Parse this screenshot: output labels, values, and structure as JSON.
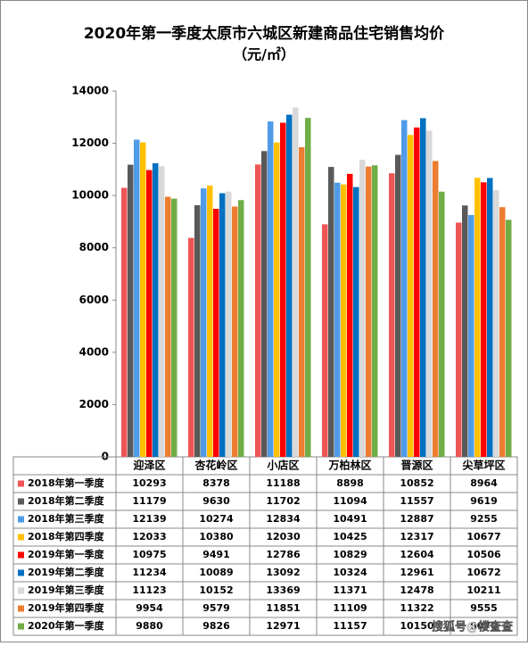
{
  "chart_data": {
    "type": "bar",
    "title": "2020年第一季度太原市六城区新建商品住宅销售均价",
    "subtitle": "（元/㎡）",
    "categories": [
      "迎泽区",
      "杏花岭区",
      "小店区",
      "万柏林区",
      "晋源区",
      "尖草坪区"
    ],
    "series": [
      {
        "name": "2018年第一季度",
        "color": "#ee5555",
        "values": [
          10293,
          8378,
          11188,
          8898,
          10852,
          8964
        ]
      },
      {
        "name": "2018年第二季度",
        "color": "#595959",
        "values": [
          11179,
          9630,
          11702,
          11094,
          11557,
          9619
        ]
      },
      {
        "name": "2018年第三季度",
        "color": "#4f9be8",
        "values": [
          12139,
          10274,
          12834,
          10491,
          12887,
          9255
        ]
      },
      {
        "name": "2018年第四季度",
        "color": "#ffc000",
        "values": [
          12033,
          10380,
          12030,
          10425,
          12317,
          10677
        ]
      },
      {
        "name": "2019年第一季度",
        "color": "#ff0000",
        "values": [
          10975,
          9491,
          12786,
          10829,
          12604,
          10506
        ]
      },
      {
        "name": "2019年第二季度",
        "color": "#0070c0",
        "values": [
          11234,
          10089,
          13092,
          10324,
          12961,
          10672
        ]
      },
      {
        "name": "2019年第三季度",
        "color": "#d9d9d9",
        "values": [
          11123,
          10152,
          13369,
          11371,
          12478,
          10211
        ]
      },
      {
        "name": "2019年第四季度",
        "color": "#ed7d31",
        "values": [
          9954,
          9579,
          11851,
          11109,
          11322,
          9555
        ]
      },
      {
        "name": "2020年第一季度",
        "color": "#70ad47",
        "values": [
          9880,
          9826,
          12971,
          11157,
          10150,
          9070
        ]
      }
    ],
    "ylim": [
      0,
      14000
    ],
    "yticks": [
      0,
      2000,
      4000,
      6000,
      8000,
      10000,
      12000,
      14000
    ],
    "source": "搜狐号@楼查查"
  }
}
